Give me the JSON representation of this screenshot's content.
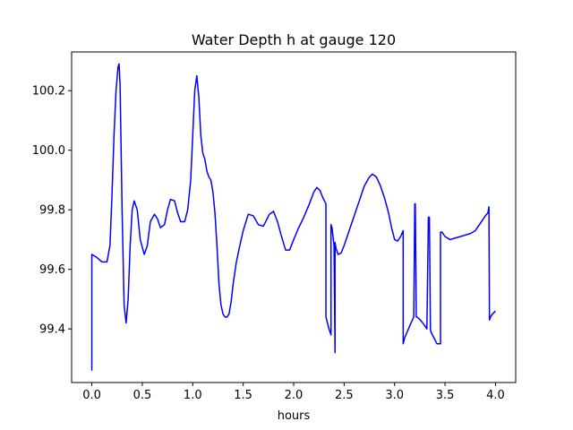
{
  "chart_data": {
    "type": "line",
    "title": "Water Depth h at gauge 120",
    "xlabel": "hours",
    "ylabel": "",
    "xlim": [
      -0.2,
      4.2
    ],
    "ylim": [
      99.22,
      100.33
    ],
    "xticks": [
      0.0,
      0.5,
      1.0,
      1.5,
      2.0,
      2.5,
      3.0,
      3.5,
      4.0
    ],
    "xtick_labels": [
      "0.0",
      "0.5",
      "1.0",
      "1.5",
      "2.0",
      "2.5",
      "3.0",
      "3.5",
      "4.0"
    ],
    "yticks": [
      99.4,
      99.6,
      99.8,
      100.0,
      100.2
    ],
    "ytick_labels": [
      "99.4",
      "99.6",
      "99.8",
      "100.0",
      "100.2"
    ],
    "grid": false,
    "legend": "none",
    "line_color": "#0000ff",
    "series": [
      {
        "x": [
          0.0,
          0.0,
          0.05,
          0.1,
          0.15,
          0.18,
          0.2,
          0.22,
          0.24,
          0.26,
          0.27,
          0.28,
          0.3,
          0.32,
          0.34,
          0.36,
          0.38,
          0.4,
          0.42,
          0.45,
          0.48,
          0.52,
          0.55,
          0.58,
          0.62,
          0.65,
          0.68,
          0.72,
          0.75,
          0.78,
          0.82,
          0.85,
          0.88,
          0.92,
          0.95,
          0.98,
          1.0,
          1.02,
          1.04,
          1.06,
          1.08,
          1.1,
          1.12,
          1.14,
          1.16,
          1.18,
          1.2,
          1.22,
          1.24,
          1.26,
          1.28,
          1.3,
          1.32,
          1.34,
          1.36,
          1.38,
          1.4,
          1.43,
          1.46,
          1.5,
          1.55,
          1.6,
          1.65,
          1.7,
          1.73,
          1.76,
          1.8,
          1.84,
          1.88,
          1.92,
          1.96,
          2.0,
          2.05,
          2.1,
          2.15,
          2.2,
          2.23,
          2.26,
          2.29,
          2.32,
          2.32,
          2.35,
          2.37,
          2.37,
          2.38,
          2.39,
          2.4,
          2.41,
          2.41,
          2.42,
          2.44,
          2.47,
          2.5,
          2.55,
          2.6,
          2.65,
          2.7,
          2.75,
          2.78,
          2.82,
          2.86,
          2.9,
          2.94,
          2.97,
          3.0,
          3.03,
          3.06,
          3.085,
          3.085,
          3.1,
          3.15,
          3.19,
          3.2,
          3.205,
          3.215,
          3.22,
          3.24,
          3.28,
          3.32,
          3.335,
          3.345,
          3.355,
          3.36,
          3.39,
          3.42,
          3.455,
          3.455,
          3.47,
          3.5,
          3.55,
          3.6,
          3.65,
          3.7,
          3.75,
          3.8,
          3.85,
          3.9,
          3.925,
          3.935,
          3.94,
          3.95,
          3.97,
          4.0
        ],
        "y": [
          99.26,
          99.65,
          99.64,
          99.625,
          99.625,
          99.68,
          99.85,
          100.05,
          100.2,
          100.28,
          100.29,
          100.22,
          99.8,
          99.48,
          99.42,
          99.5,
          99.68,
          99.8,
          99.83,
          99.8,
          99.7,
          99.65,
          99.68,
          99.76,
          99.785,
          99.77,
          99.74,
          99.75,
          99.8,
          99.835,
          99.83,
          99.79,
          99.76,
          99.76,
          99.8,
          99.9,
          100.05,
          100.2,
          100.25,
          100.18,
          100.05,
          99.99,
          99.97,
          99.93,
          99.91,
          99.9,
          99.86,
          99.79,
          99.68,
          99.55,
          99.48,
          99.45,
          99.44,
          99.44,
          99.45,
          99.49,
          99.55,
          99.62,
          99.67,
          99.73,
          99.785,
          99.78,
          99.75,
          99.745,
          99.765,
          99.785,
          99.795,
          99.76,
          99.71,
          99.665,
          99.665,
          99.7,
          99.74,
          99.775,
          99.815,
          99.86,
          99.875,
          99.865,
          99.84,
          99.82,
          99.44,
          99.4,
          99.38,
          99.75,
          99.74,
          99.71,
          99.68,
          99.32,
          99.69,
          99.67,
          99.65,
          99.655,
          99.68,
          99.73,
          99.78,
          99.83,
          99.88,
          99.91,
          99.92,
          99.91,
          99.88,
          99.84,
          99.79,
          99.74,
          99.7,
          99.695,
          99.71,
          99.73,
          99.35,
          99.37,
          99.41,
          99.44,
          99.82,
          99.82,
          99.44,
          99.44,
          99.435,
          99.42,
          99.4,
          99.775,
          99.775,
          99.4,
          99.39,
          99.37,
          99.35,
          99.35,
          99.725,
          99.725,
          99.71,
          99.7,
          99.705,
          99.71,
          99.715,
          99.72,
          99.73,
          99.755,
          99.78,
          99.79,
          99.81,
          99.43,
          99.44,
          99.45,
          99.46
        ]
      }
    ]
  }
}
